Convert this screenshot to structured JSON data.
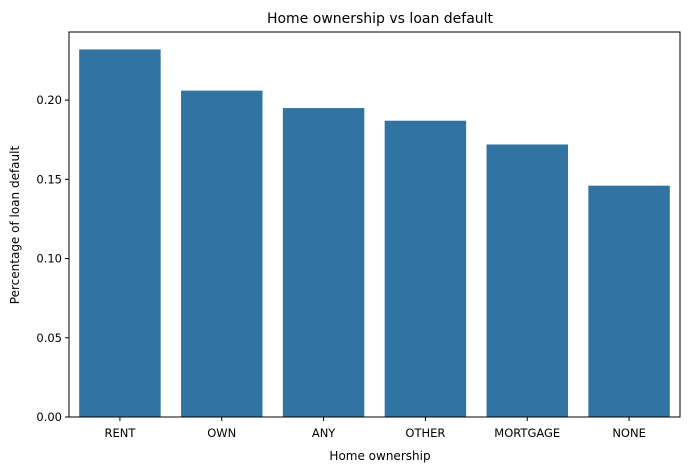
{
  "chart_data": {
    "type": "bar",
    "title": "Home ownership vs loan default",
    "xlabel": "Home ownership",
    "ylabel": "Percentage of loan default",
    "categories": [
      "RENT",
      "OWN",
      "ANY",
      "OTHER",
      "MORTGAGE",
      "NONE"
    ],
    "values": [
      0.232,
      0.206,
      0.195,
      0.187,
      0.172,
      0.146
    ],
    "ylim": [
      0,
      0.243
    ],
    "yticks": [
      0.0,
      0.05,
      0.1,
      0.15,
      0.2
    ],
    "ytick_labels": [
      "0.00",
      "0.05",
      "0.10",
      "0.15",
      "0.20"
    ],
    "grid": false,
    "bar_color": "#3274a1"
  }
}
